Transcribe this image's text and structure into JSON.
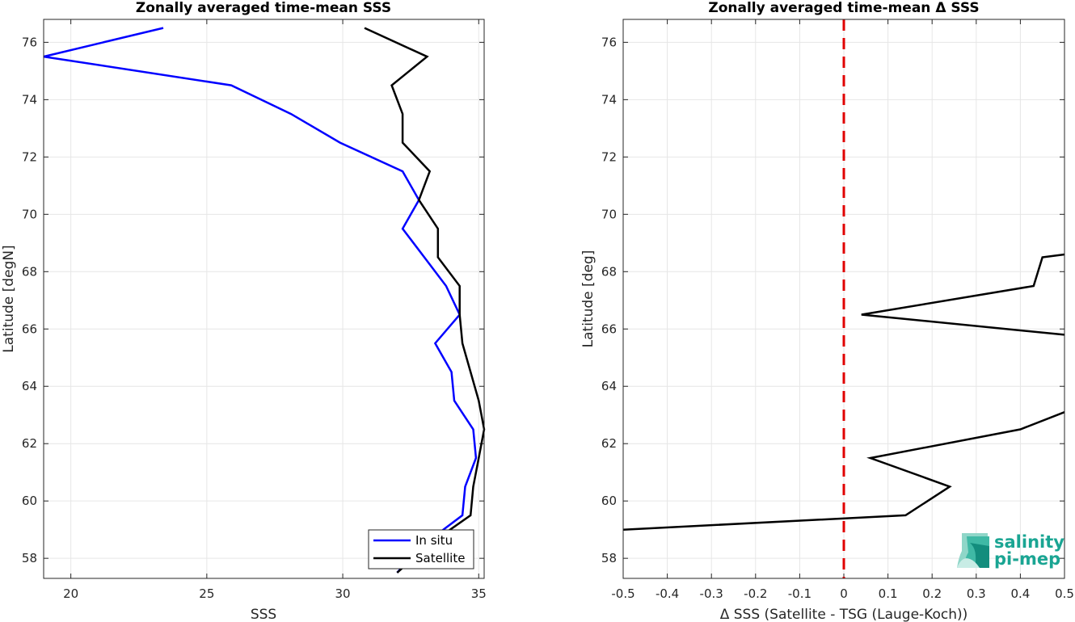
{
  "chart_data": [
    {
      "type": "line",
      "title": "Zonally averaged time-mean SSS",
      "xlabel": "SSS",
      "ylabel": "Latitude [degN]",
      "xlim": [
        19,
        35.2
      ],
      "ylim": [
        57.3,
        76.8
      ],
      "xticks": [
        "20",
        "25",
        "30",
        "35"
      ],
      "xtick_values": [
        20,
        25,
        30,
        35
      ],
      "yticks": [
        "58",
        "60",
        "62",
        "64",
        "66",
        "68",
        "70",
        "72",
        "74",
        "76"
      ],
      "ytick_values": [
        58,
        60,
        62,
        64,
        66,
        68,
        70,
        72,
        74,
        76
      ],
      "grid": true,
      "legend": "bottom-right",
      "series": [
        {
          "name": "In situ",
          "color": "#0000ff",
          "points": [
            [
              23.4,
              76.5
            ],
            [
              19.0,
              75.5
            ],
            [
              25.9,
              74.5
            ],
            [
              28.1,
              73.5
            ],
            [
              29.9,
              72.5
            ],
            [
              32.2,
              71.5
            ],
            [
              32.8,
              70.5
            ],
            [
              32.2,
              69.5
            ],
            [
              33.0,
              68.5
            ],
            [
              33.8,
              67.5
            ],
            [
              34.3,
              66.5
            ],
            [
              33.4,
              65.5
            ],
            [
              34.0,
              64.5
            ],
            [
              34.1,
              63.5
            ],
            [
              34.8,
              62.5
            ],
            [
              34.9,
              61.5
            ],
            [
              34.5,
              60.5
            ],
            [
              34.4,
              59.5
            ],
            [
              33.0,
              58.5
            ],
            [
              32.0,
              57.5
            ]
          ]
        },
        {
          "name": "Satellite",
          "color": "#000000",
          "points": [
            [
              30.8,
              76.5
            ],
            [
              33.1,
              75.5
            ],
            [
              31.8,
              74.5
            ],
            [
              32.2,
              73.5
            ],
            [
              32.2,
              72.5
            ],
            [
              33.2,
              71.5
            ],
            [
              32.8,
              70.5
            ],
            [
              33.5,
              69.5
            ],
            [
              33.5,
              68.5
            ],
            [
              34.3,
              67.5
            ],
            [
              34.3,
              66.5
            ],
            [
              34.4,
              65.5
            ],
            [
              34.7,
              64.5
            ],
            [
              35.0,
              63.5
            ],
            [
              35.2,
              62.5
            ],
            [
              35.0,
              61.5
            ],
            [
              34.8,
              60.5
            ],
            [
              34.7,
              59.5
            ],
            [
              33.2,
              58.5
            ],
            [
              32.0,
              57.5
            ]
          ]
        }
      ]
    },
    {
      "type": "line",
      "title": "Zonally averaged time-mean Δ SSS",
      "xlabel": "Δ SSS (Satellite - TSG (Lauge-Koch))",
      "ylabel": "Latitude [deg]",
      "xlim": [
        -0.5,
        0.5
      ],
      "ylim": [
        57.3,
        76.8
      ],
      "xticks": [
        "-0.5",
        "-0.4",
        "-0.3",
        "-0.2",
        "-0.1",
        "0",
        "0.1",
        "0.2",
        "0.3",
        "0.4",
        "0.5"
      ],
      "xtick_values": [
        -0.5,
        -0.4,
        -0.3,
        -0.2,
        -0.1,
        0,
        0.1,
        0.2,
        0.3,
        0.4,
        0.5
      ],
      "yticks": [
        "58",
        "60",
        "62",
        "64",
        "66",
        "68",
        "70",
        "72",
        "74",
        "76"
      ],
      "ytick_values": [
        58,
        60,
        62,
        64,
        66,
        68,
        70,
        72,
        74,
        76
      ],
      "grid": true,
      "reference_line": {
        "x": 0,
        "color": "#e00000",
        "style": "dashed"
      },
      "series": [
        {
          "color": "#000000",
          "points": [
            [
              0.5,
              68.6
            ],
            [
              0.45,
              68.5
            ],
            [
              0.43,
              67.5
            ],
            [
              0.04,
              66.5
            ],
            [
              0.5,
              65.8
            ],
            [
              null,
              null
            ],
            [
              0.5,
              63.1
            ],
            [
              0.4,
              62.5
            ],
            [
              0.06,
              61.5
            ],
            [
              0.24,
              60.5
            ],
            [
              0.14,
              59.5
            ],
            [
              -0.5,
              59.0
            ]
          ]
        }
      ]
    }
  ],
  "logo": {
    "line1": "salinity",
    "line2": "pi-mep"
  }
}
